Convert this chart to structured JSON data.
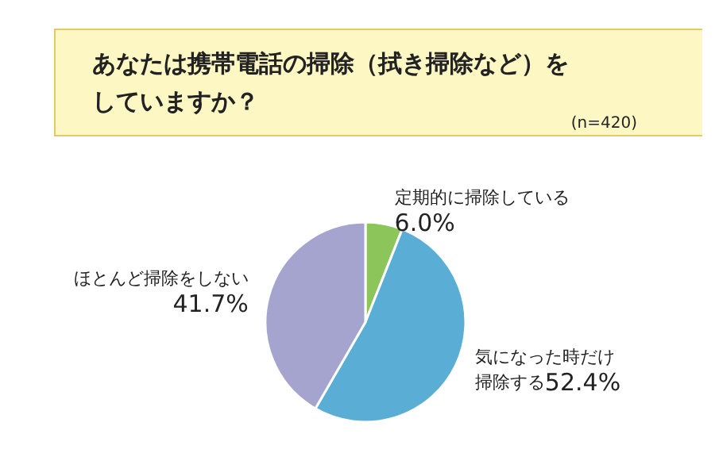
{
  "chart_data": {
    "type": "pie",
    "title": "あなたは携帯電話の掃除（拭き掃除など）をしていますか？",
    "subtitle": "(n=420)",
    "categories": [
      "定期的に掃除している",
      "気になった時だけ掃除する",
      "ほとんど掃除をしない"
    ],
    "values": [
      6.0,
      52.4,
      41.7
    ],
    "colors": [
      "#8cc65a",
      "#5aaed6",
      "#a4a4cf"
    ],
    "value_labels": [
      "6.0%",
      "52.4%",
      "41.7%"
    ]
  }
}
